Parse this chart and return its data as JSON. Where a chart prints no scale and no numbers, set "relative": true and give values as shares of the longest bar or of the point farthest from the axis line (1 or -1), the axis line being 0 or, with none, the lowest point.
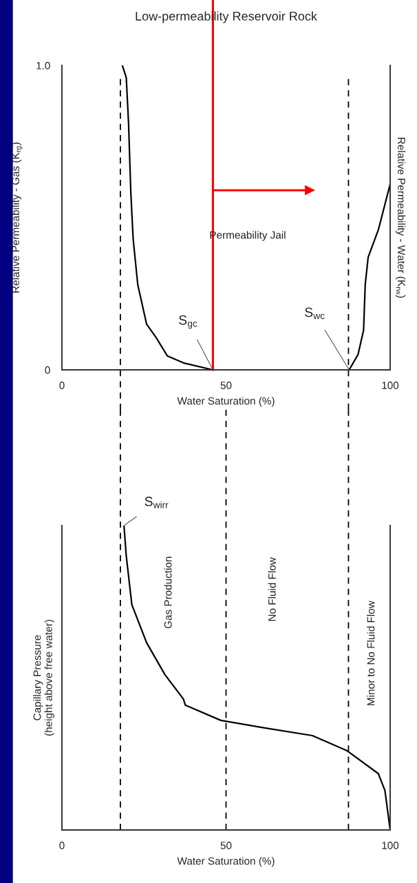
{
  "chart_data": [
    {
      "type": "line",
      "title": "Low-permeability Reservoir Rock",
      "xlabel": "Water Saturation (%)",
      "ylabel": "Relative Permeability - Gas (K$_{rg}$)",
      "y2label": "Relative Permeability - Water (K$_{rw}$)",
      "series": [
        {
          "color": "#000000",
          "x": [
            18.4,
            19.6,
            20.3,
            21.0,
            21.7,
            23.1,
            25.8,
            28.7,
            32.1,
            37.0,
            46
          ],
          "values": [
            1.0,
            0.96,
            0.81,
            0.58,
            0.43,
            0.28,
            0.15,
            0.106,
            0.046,
            0.023,
            0
          ]
        },
        {
          "color": "#000000",
          "x": [
            87.5,
            90.2,
            91.9,
            92.4,
            93.3,
            96.4,
            100
          ],
          "values": [
            0,
            0.05,
            0.13,
            0.28,
            0.37,
            0.46,
            0.61
          ]
        },
        {
          "color": "#ff0000",
          "marker": "triangle",
          "x": [
            46,
            75.5
          ],
          "values": [
            0.59,
            0.59
          ]
        }
      ],
      "xlim": [
        0,
        100
      ],
      "ylim": [
        0,
        1
      ],
      "xticks": [
        0,
        50,
        100
      ],
      "yticks": [
        0,
        {
          "value": 1,
          "label": "1.0"
        }
      ],
      "ref_lines": [
        {
          "axis": "x",
          "value": 17.8,
          "color": "#000000",
          "line_style": "dashed"
        },
        {
          "axis": "x",
          "value": 87.3,
          "color": "#000000",
          "line_style": "dashed"
        },
        {
          "axis": "x",
          "value": 46,
          "color": "#ff0000",
          "line_style": "solid"
        }
      ],
      "annotations": [
        "Permeability Jail",
        {
          "text": "S$_{gc}$",
          "x": 46,
          "y": 0
        },
        {
          "text": "S$_{wc}$",
          "x": 87.5,
          "y": 0
        }
      ]
    },
    {
      "type": "line",
      "relative": true,
      "xlabel": "Water Saturation (%)",
      "ylabel": "Capillary Pressure\n(height above free water)",
      "series": [
        {
          "color": "#000000",
          "x": [
            18.9,
            19.6,
            21.3,
            25.8,
            31.4,
            37.0,
            37.6,
            48.4,
            61.8,
            76.3,
            86.9,
            96.4,
            98.4,
            100
          ],
          "values": [
            1.0,
            0.9,
            0.74,
            0.615,
            0.51,
            0.43,
            0.41,
            0.36,
            0.335,
            0.31,
            0.26,
            0.185,
            0.13,
            0
          ]
        }
      ],
      "xlim": [
        0,
        100
      ],
      "xticks": [
        0,
        50,
        100
      ],
      "ref_lines": [
        {
          "axis": "x",
          "value": 17.8,
          "color": "#000000",
          "line_style": "dashed"
        },
        {
          "axis": "x",
          "value": 50,
          "color": "#000000",
          "line_style": "dashed"
        },
        {
          "axis": "x",
          "value": 87.3,
          "color": "#000000",
          "line_style": "dashed"
        }
      ],
      "annotations": [
        {
          "text": "S$_{wirr}$",
          "x": 18.9,
          "y": 1.0
        },
        "Gas Production",
        "No Fluid Flow",
        "Minor to No Fluid Flow"
      ]
    }
  ]
}
